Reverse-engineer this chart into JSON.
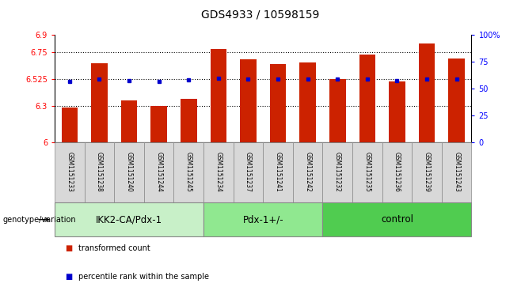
{
  "title": "GDS4933 / 10598159",
  "samples": [
    "GSM1151233",
    "GSM1151238",
    "GSM1151240",
    "GSM1151244",
    "GSM1151245",
    "GSM1151234",
    "GSM1151237",
    "GSM1151241",
    "GSM1151242",
    "GSM1151232",
    "GSM1151235",
    "GSM1151236",
    "GSM1151239",
    "GSM1151243"
  ],
  "bar_values": [
    6.29,
    6.66,
    6.35,
    6.305,
    6.36,
    6.78,
    6.69,
    6.655,
    6.665,
    6.525,
    6.73,
    6.51,
    6.825,
    6.7
  ],
  "percentile_values": [
    6.508,
    6.527,
    6.512,
    6.51,
    6.523,
    6.533,
    6.529,
    6.529,
    6.529,
    6.527,
    6.529,
    6.512,
    6.529,
    6.529
  ],
  "groups": [
    {
      "label": "IKK2-CA/Pdx-1",
      "start": 0,
      "end": 5,
      "color": "#c8f0c8"
    },
    {
      "label": "Pdx-1+/-",
      "start": 5,
      "end": 9,
      "color": "#90e890"
    },
    {
      "label": "control",
      "start": 9,
      "end": 14,
      "color": "#50cc50"
    }
  ],
  "bar_color": "#cc2200",
  "percentile_color": "#0000cc",
  "bar_baseline": 6.0,
  "ylim_left": [
    6.0,
    6.9
  ],
  "ylim_right": [
    0,
    100
  ],
  "yticks_left": [
    6.0,
    6.3,
    6.525,
    6.75,
    6.9
  ],
  "ytick_labels_left": [
    "6",
    "6.3",
    "6.525",
    "6.75",
    "6.9"
  ],
  "yticks_right": [
    0,
    25,
    50,
    75,
    100
  ],
  "ytick_labels_right": [
    "0",
    "25",
    "50",
    "75",
    "100%"
  ],
  "hlines": [
    6.3,
    6.525,
    6.75
  ],
  "group_row_label": "genotype/variation",
  "legend_bar_label": "transformed count",
  "legend_pct_label": "percentile rank within the sample",
  "fig_bg": "#ffffff",
  "plot_bg": "#ffffff",
  "sample_cell_bg": "#d8d8d8",
  "title_fontsize": 10,
  "tick_fontsize": 7,
  "sample_fontsize": 5.5,
  "group_fontsize": 8.5,
  "legend_fontsize": 7
}
